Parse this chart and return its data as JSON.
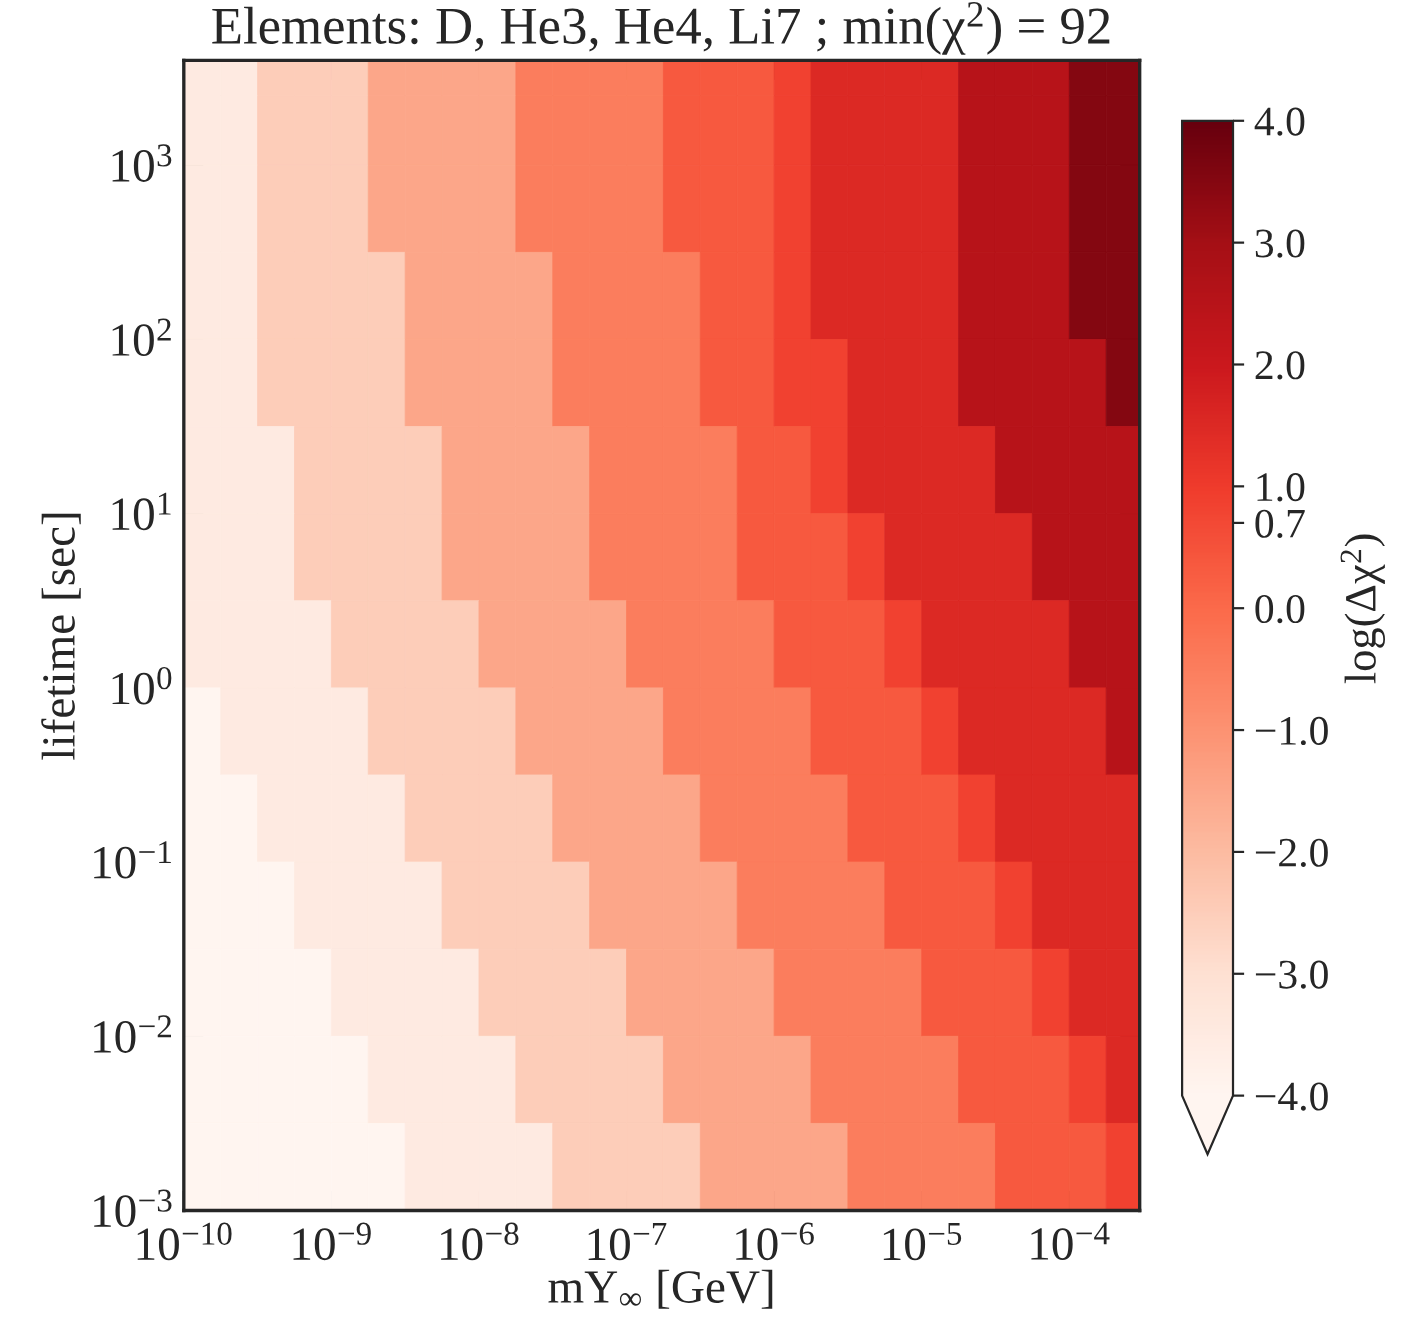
{
  "chart_data": {
    "type": "heatmap",
    "title": "Elements: D, He3, He4, Li7 ; min(χ$^{2}$) = 92",
    "xlabel": "mY$_{∞}$ [GeV]",
    "ylabel": "lifetime [sec]",
    "clabel": "log(Δχ$^{2}$)",
    "log": "xy",
    "x": [
      1.334e-10,
      2.371e-10,
      4.217e-10,
      7.499e-10,
      1.334e-09,
      2.371e-09,
      4.217e-09,
      7.499e-09,
      1.334e-08,
      2.371e-08,
      4.217e-08,
      7.499e-08,
      1.334e-07,
      2.371e-07,
      4.217e-07,
      7.499e-07,
      1.334e-06,
      2.371e-06,
      4.217e-06,
      7.499e-06,
      1.334e-05,
      2.371e-05,
      4.217e-05,
      7.499e-05,
      0.0001334,
      0.0002371
    ],
    "y": [
      3548,
      1778,
      562.3,
      177.8,
      56.23,
      17.78,
      5.623,
      1.778,
      0.5623,
      0.1778,
      0.05623,
      0.01778,
      0.005623,
      0.001778
    ],
    "cells": [
      [
        -3.5,
        -3.5,
        -2.5,
        -2.5,
        -2.5,
        -1.5,
        -1.5,
        -1.5,
        -1.5,
        -0.5,
        -0.5,
        -0.5,
        -0.5,
        0.35,
        0.35,
        0.35,
        0.85,
        1.5,
        1.5,
        1.5,
        1.5,
        2.5,
        2.5,
        2.5,
        3.5,
        3.5
      ],
      [
        -3.5,
        -3.5,
        -2.5,
        -2.5,
        -2.5,
        -1.5,
        -1.5,
        -1.5,
        -1.5,
        -0.5,
        -0.5,
        -0.5,
        -0.5,
        0.35,
        0.35,
        0.35,
        0.85,
        1.5,
        1.5,
        1.5,
        1.5,
        2.5,
        2.5,
        2.5,
        3.5,
        3.5
      ],
      [
        -3.5,
        -3.5,
        -2.5,
        -2.5,
        -2.5,
        -1.5,
        -1.5,
        -1.5,
        -1.5,
        -0.5,
        -0.5,
        -0.5,
        -0.5,
        0.35,
        0.35,
        0.35,
        0.85,
        1.5,
        1.5,
        1.5,
        1.5,
        2.5,
        2.5,
        2.5,
        3.5,
        3.5
      ],
      [
        -3.5,
        -3.5,
        -2.5,
        -2.5,
        -2.5,
        -2.5,
        -1.5,
        -1.5,
        -1.5,
        -1.5,
        -0.5,
        -0.5,
        -0.5,
        -0.5,
        0.35,
        0.35,
        0.85,
        1.5,
        1.5,
        1.5,
        1.5,
        2.5,
        2.5,
        2.5,
        3.5,
        3.5
      ],
      [
        -3.5,
        -3.5,
        -2.5,
        -2.5,
        -2.5,
        -2.5,
        -1.5,
        -1.5,
        -1.5,
        -1.5,
        -0.5,
        -0.5,
        -0.5,
        -0.5,
        0.35,
        0.35,
        0.85,
        0.85,
        1.5,
        1.5,
        1.5,
        2.5,
        2.5,
        2.5,
        2.5,
        3.5
      ],
      [
        -3.5,
        -3.5,
        -3.5,
        -2.5,
        -2.5,
        -2.5,
        -2.5,
        -1.5,
        -1.5,
        -1.5,
        -1.5,
        -0.5,
        -0.5,
        -0.5,
        -0.5,
        0.35,
        0.35,
        0.85,
        1.5,
        1.5,
        1.5,
        1.5,
        2.5,
        2.5,
        2.5,
        2.5
      ],
      [
        -3.5,
        -3.5,
        -3.5,
        -2.5,
        -2.5,
        -2.5,
        -2.5,
        -1.5,
        -1.5,
        -1.5,
        -1.5,
        -0.5,
        -0.5,
        -0.5,
        -0.5,
        0.35,
        0.35,
        0.35,
        0.85,
        1.5,
        1.5,
        1.5,
        1.5,
        2.5,
        2.5,
        2.5
      ],
      [
        -3.5,
        -3.5,
        -3.5,
        -3.5,
        -2.5,
        -2.5,
        -2.5,
        -2.5,
        -1.5,
        -1.5,
        -1.5,
        -1.5,
        -0.5,
        -0.5,
        -0.5,
        -0.5,
        0.35,
        0.35,
        0.35,
        0.85,
        1.5,
        1.5,
        1.5,
        1.5,
        2.5,
        2.5
      ],
      [
        -4,
        -3.5,
        -3.5,
        -3.5,
        -3.5,
        -2.5,
        -2.5,
        -2.5,
        -2.5,
        -1.5,
        -1.5,
        -1.5,
        -1.5,
        -0.5,
        -0.5,
        -0.5,
        -0.5,
        0.35,
        0.35,
        0.35,
        0.85,
        1.5,
        1.5,
        1.5,
        1.5,
        2.5
      ],
      [
        -4,
        -4,
        -3.5,
        -3.5,
        -3.5,
        -3.5,
        -2.5,
        -2.5,
        -2.5,
        -2.5,
        -1.5,
        -1.5,
        -1.5,
        -1.5,
        -0.5,
        -0.5,
        -0.5,
        -0.5,
        0.35,
        0.35,
        0.35,
        0.85,
        1.5,
        1.5,
        1.5,
        1.5
      ],
      [
        -4,
        -4,
        -4,
        -3.5,
        -3.5,
        -3.5,
        -3.5,
        -2.5,
        -2.5,
        -2.5,
        -2.5,
        -1.5,
        -1.5,
        -1.5,
        -1.5,
        -0.5,
        -0.5,
        -0.5,
        -0.5,
        0.35,
        0.35,
        0.35,
        0.85,
        1.5,
        1.5,
        1.5
      ],
      [
        -4,
        -4,
        -4,
        -4,
        -3.5,
        -3.5,
        -3.5,
        -3.5,
        -2.5,
        -2.5,
        -2.5,
        -2.5,
        -1.5,
        -1.5,
        -1.5,
        -1.5,
        -0.5,
        -0.5,
        -0.5,
        -0.5,
        0.35,
        0.35,
        0.35,
        0.85,
        1.5,
        1.5
      ],
      [
        -4,
        -4,
        -4,
        -4,
        -4,
        -3.5,
        -3.5,
        -3.5,
        -3.5,
        -2.5,
        -2.5,
        -2.5,
        -2.5,
        -1.5,
        -1.5,
        -1.5,
        -1.5,
        -0.5,
        -0.5,
        -0.5,
        -0.5,
        0.35,
        0.35,
        0.35,
        0.85,
        1.5
      ],
      [
        -4,
        -4,
        -4,
        -4,
        -4,
        -4,
        -3.5,
        -3.5,
        -3.5,
        -3.5,
        -2.5,
        -2.5,
        -2.5,
        -2.5,
        -1.5,
        -1.5,
        -1.5,
        -1.5,
        -0.5,
        -0.5,
        -0.5,
        -0.5,
        0.35,
        0.35,
        0.35,
        0.85
      ]
    ],
    "xlim": [
      1e-10,
      0.0003
    ],
    "ylim": [
      0.001,
      4000
    ],
    "xticks": [
      {
        "value": 1e-10,
        "label": "10$^{−10}$"
      },
      {
        "value": 1e-09,
        "label": "10$^{−9}$"
      },
      {
        "value": 1e-08,
        "label": "10$^{−8}$"
      },
      {
        "value": 1e-07,
        "label": "10$^{−7}$"
      },
      {
        "value": 1e-06,
        "label": "10$^{−6}$"
      },
      {
        "value": 1e-05,
        "label": "10$^{−5}$"
      },
      {
        "value": 0.0001,
        "label": "10$^{−4}$"
      }
    ],
    "yticks": [
      {
        "value": 0.001,
        "label": "10$^{−3}$"
      },
      {
        "value": 0.01,
        "label": "10$^{−2}$"
      },
      {
        "value": 0.1,
        "label": "10$^{−1}$"
      },
      {
        "value": 1,
        "label": "10$^{0}$"
      },
      {
        "value": 10,
        "label": "10$^{1}$"
      },
      {
        "value": 100,
        "label": "10$^{2}$"
      },
      {
        "value": 1000,
        "label": "10$^{3}$"
      }
    ],
    "clim": [
      -4,
      4
    ],
    "cticks": [
      {
        "value": -4,
        "label": "−4.0"
      },
      {
        "value": -3,
        "label": "−3.0"
      },
      {
        "value": -2,
        "label": "−2.0"
      },
      {
        "value": -1,
        "label": "−1.0"
      },
      {
        "value": 0,
        "label": "0.0"
      },
      {
        "value": 0.7,
        "label": "0.7"
      },
      {
        "value": 1,
        "label": "1.0"
      },
      {
        "value": 2,
        "label": "2.0"
      },
      {
        "value": 3,
        "label": "3.0"
      },
      {
        "value": 4,
        "label": "4.0"
      }
    ]
  }
}
